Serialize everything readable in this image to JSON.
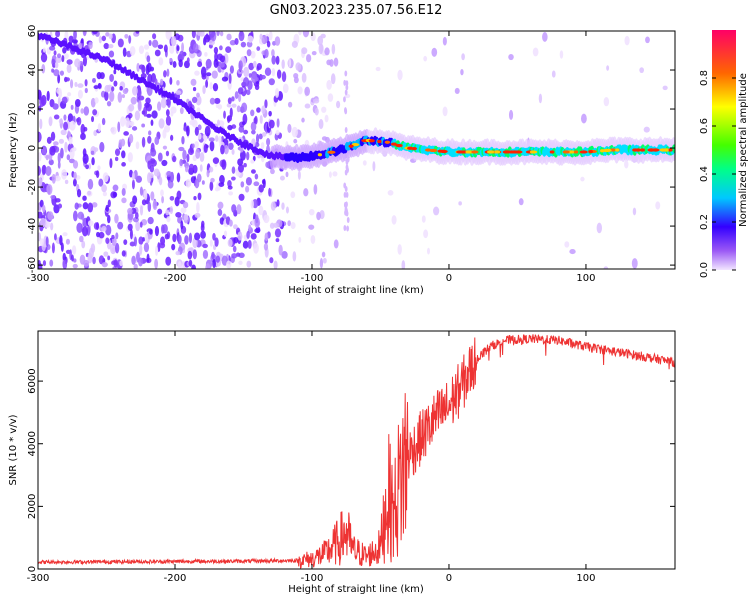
{
  "title": "GN03.2023.235.07.56.E12",
  "chart_data": [
    {
      "type": "heatmap",
      "xlabel": "Height of straight line (km)",
      "ylabel": "Frequency (Hz)",
      "xlim": [
        -300,
        165
      ],
      "ylim": [
        -62,
        60
      ],
      "xticks": [
        -300,
        -200,
        -100,
        0,
        100
      ],
      "yticks": [
        -60,
        -40,
        -20,
        0,
        20,
        40,
        60
      ],
      "ridge": {
        "x": [
          -300,
          -250,
          -200,
          -170,
          -150,
          -130,
          -110,
          -90,
          -75,
          -60,
          -45,
          -30,
          -15,
          0,
          50,
          80,
          100,
          120,
          150,
          165
        ],
        "y": [
          58,
          45,
          25,
          10,
          2,
          -4,
          -5,
          -3,
          0,
          4,
          3,
          0,
          -1,
          -2,
          -2,
          -2,
          -2,
          -1,
          -1,
          -1
        ]
      },
      "colorbar": {
        "label": "Normalized spectral amplitude",
        "range": [
          0,
          1
        ],
        "ticks": [
          0.0,
          0.2,
          0.4,
          0.6,
          0.8
        ],
        "tick_labels": [
          "0.0",
          "0.2",
          "0.4",
          "0.6",
          "0.8"
        ]
      }
    },
    {
      "type": "line",
      "xlabel": "Height of straight line (km)",
      "ylabel": "SNR (10 * v/v)",
      "xlim": [
        -300,
        165
      ],
      "ylim": [
        0,
        7600
      ],
      "xticks": [
        -300,
        -200,
        -100,
        0,
        100
      ],
      "yticks": [
        0,
        2000,
        4000,
        6000
      ],
      "color": "#ee3333",
      "series": [
        {
          "x": [
            -300,
            -250,
            -200,
            -150,
            -110,
            -100,
            -90,
            -80,
            -75,
            -70,
            -60,
            -50,
            -45,
            -40,
            -35,
            -30,
            -20,
            -10,
            0,
            10,
            20,
            30,
            40,
            60,
            80,
            100,
            120,
            140,
            165
          ],
          "y": [
            220,
            230,
            240,
            250,
            270,
            320,
            500,
            900,
            1200,
            600,
            400,
            700,
            2400,
            1800,
            3000,
            3600,
            4200,
            4800,
            5200,
            5900,
            6700,
            7100,
            7300,
            7350,
            7300,
            7100,
            6950,
            6800,
            6600
          ]
        }
      ]
    }
  ]
}
